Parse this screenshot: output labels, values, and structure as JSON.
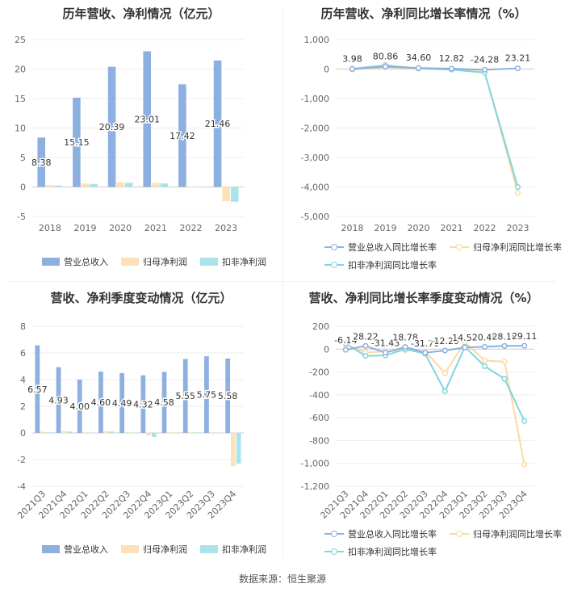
{
  "source": "数据来源：恒生聚源",
  "colors": {
    "revenue": "#8eb0e0",
    "parent": "#fde2b8",
    "nonrec": "#a9e4ea",
    "revenue_line": "#8eb0e0",
    "parent_line": "#fcd9a2",
    "nonrec_line": "#7fd6de"
  },
  "chart_data": [
    {
      "type": "bar",
      "title": "历年营收、净利情况（亿元）",
      "categories": [
        "2018",
        "2019",
        "2020",
        "2021",
        "2022",
        "2023"
      ],
      "series": [
        {
          "name": "营业总收入",
          "values": [
            8.38,
            15.15,
            20.39,
            23.01,
            17.42,
            21.46
          ],
          "labels": [
            "8.38",
            "15.15",
            "20.39",
            "23.01",
            "17.42",
            "21.46"
          ]
        },
        {
          "name": "归母净利润",
          "values": [
            0.35,
            0.6,
            0.8,
            0.7,
            0.1,
            -2.4
          ]
        },
        {
          "name": "扣非净利润",
          "values": [
            0.25,
            0.5,
            0.7,
            0.6,
            0.05,
            -2.5
          ]
        }
      ],
      "ylim": [
        -5,
        25
      ],
      "yticks": [
        -5,
        0,
        5,
        10,
        15,
        20,
        25
      ],
      "ytick_labels": [
        "-5",
        "0",
        "5",
        "10",
        "15",
        "20",
        "25"
      ]
    },
    {
      "type": "line",
      "title": "历年营收、净利同比增长率情况（%）",
      "categories": [
        "2018",
        "2019",
        "2020",
        "2021",
        "2022",
        "2023"
      ],
      "series": [
        {
          "name": "营业总收入同比增长率",
          "values": [
            3.98,
            80.86,
            34.6,
            12.82,
            -24.28,
            23.21
          ],
          "labels": [
            "3.98",
            "80.86",
            "34.60",
            "12.82",
            "-24.28",
            "23.21"
          ]
        },
        {
          "name": "归母净利润同比增长率",
          "values": [
            -20,
            60,
            30,
            -15,
            -90,
            -4200
          ]
        },
        {
          "name": "扣非净利润同比增长率",
          "values": [
            10,
            130,
            20,
            -20,
            -120,
            -4000
          ]
        }
      ],
      "ylim": [
        -5000,
        1000
      ],
      "yticks": [
        -5000,
        -4000,
        -3000,
        -2000,
        -1000,
        0,
        1000
      ],
      "ytick_labels": [
        "-5,000",
        "-4,000",
        "-3,000",
        "-2,000",
        "-1,000",
        "0",
        "1,000"
      ]
    },
    {
      "type": "bar",
      "title": "营收、净利季度变动情况（亿元）",
      "categories": [
        "2021Q3",
        "2021Q4",
        "2022Q1",
        "2022Q2",
        "2022Q3",
        "2022Q4",
        "2023Q1",
        "2023Q2",
        "2023Q3",
        "2023Q4"
      ],
      "series": [
        {
          "name": "营业总收入",
          "values": [
            6.57,
            4.93,
            4.0,
            4.6,
            4.49,
            4.32,
            4.58,
            5.55,
            5.75,
            5.58
          ],
          "labels": [
            "6.57",
            "4.93",
            "4.00",
            "4.60",
            "4.49",
            "4.32",
            "4.58",
            "5.55",
            "5.75",
            "5.58"
          ]
        },
        {
          "name": "归母净利润",
          "values": [
            0.1,
            0.15,
            0.05,
            0.15,
            0.05,
            -0.2,
            0.05,
            0.05,
            0.05,
            -2.5
          ]
        },
        {
          "name": "扣非净利润",
          "values": [
            0.05,
            0.1,
            0.03,
            0.1,
            0.03,
            -0.3,
            0.03,
            0.04,
            0.03,
            -2.3
          ]
        }
      ],
      "ylim": [
        -4,
        8
      ],
      "yticks": [
        -4,
        -2,
        0,
        2,
        4,
        6,
        8
      ],
      "ytick_labels": [
        "-4",
        "-2",
        "0",
        "2",
        "4",
        "6",
        "8"
      ]
    },
    {
      "type": "line",
      "title": "营收、净利同比增长率季度变动情况（%）",
      "categories": [
        "2021Q3",
        "2021Q4",
        "2022Q1",
        "2022Q2",
        "2022Q3",
        "2022Q4",
        "2023Q1",
        "2023Q2",
        "2023Q3",
        "2023Q4"
      ],
      "series": [
        {
          "name": "营业总收入同比增长率",
          "values": [
            -6.14,
            28.22,
            -31.43,
            18.78,
            -31.7,
            -12.29,
            14.53,
            20.45,
            28.1,
            29.11
          ],
          "labels": [
            "-6.14",
            "28.22",
            "-31.43",
            "18.78",
            "-31.70",
            "-12.29",
            "14.53",
            "20.45",
            "28.10",
            "29.11"
          ]
        },
        {
          "name": "归母净利润同比增长率",
          "values": [
            40,
            -30,
            -20,
            -10,
            -20,
            -210,
            60,
            -100,
            -110,
            -1010
          ]
        },
        {
          "name": "扣非净利润同比增长率",
          "values": [
            50,
            -60,
            -55,
            0,
            -40,
            -370,
            20,
            -150,
            -260,
            -630
          ]
        }
      ],
      "ylim": [
        -1200,
        200
      ],
      "yticks": [
        -1200,
        -1000,
        -800,
        -600,
        -400,
        -200,
        0,
        200
      ],
      "ytick_labels": [
        "-1,200",
        "-1,000",
        "-800",
        "-600",
        "-400",
        "-200",
        "0",
        "200"
      ]
    }
  ]
}
